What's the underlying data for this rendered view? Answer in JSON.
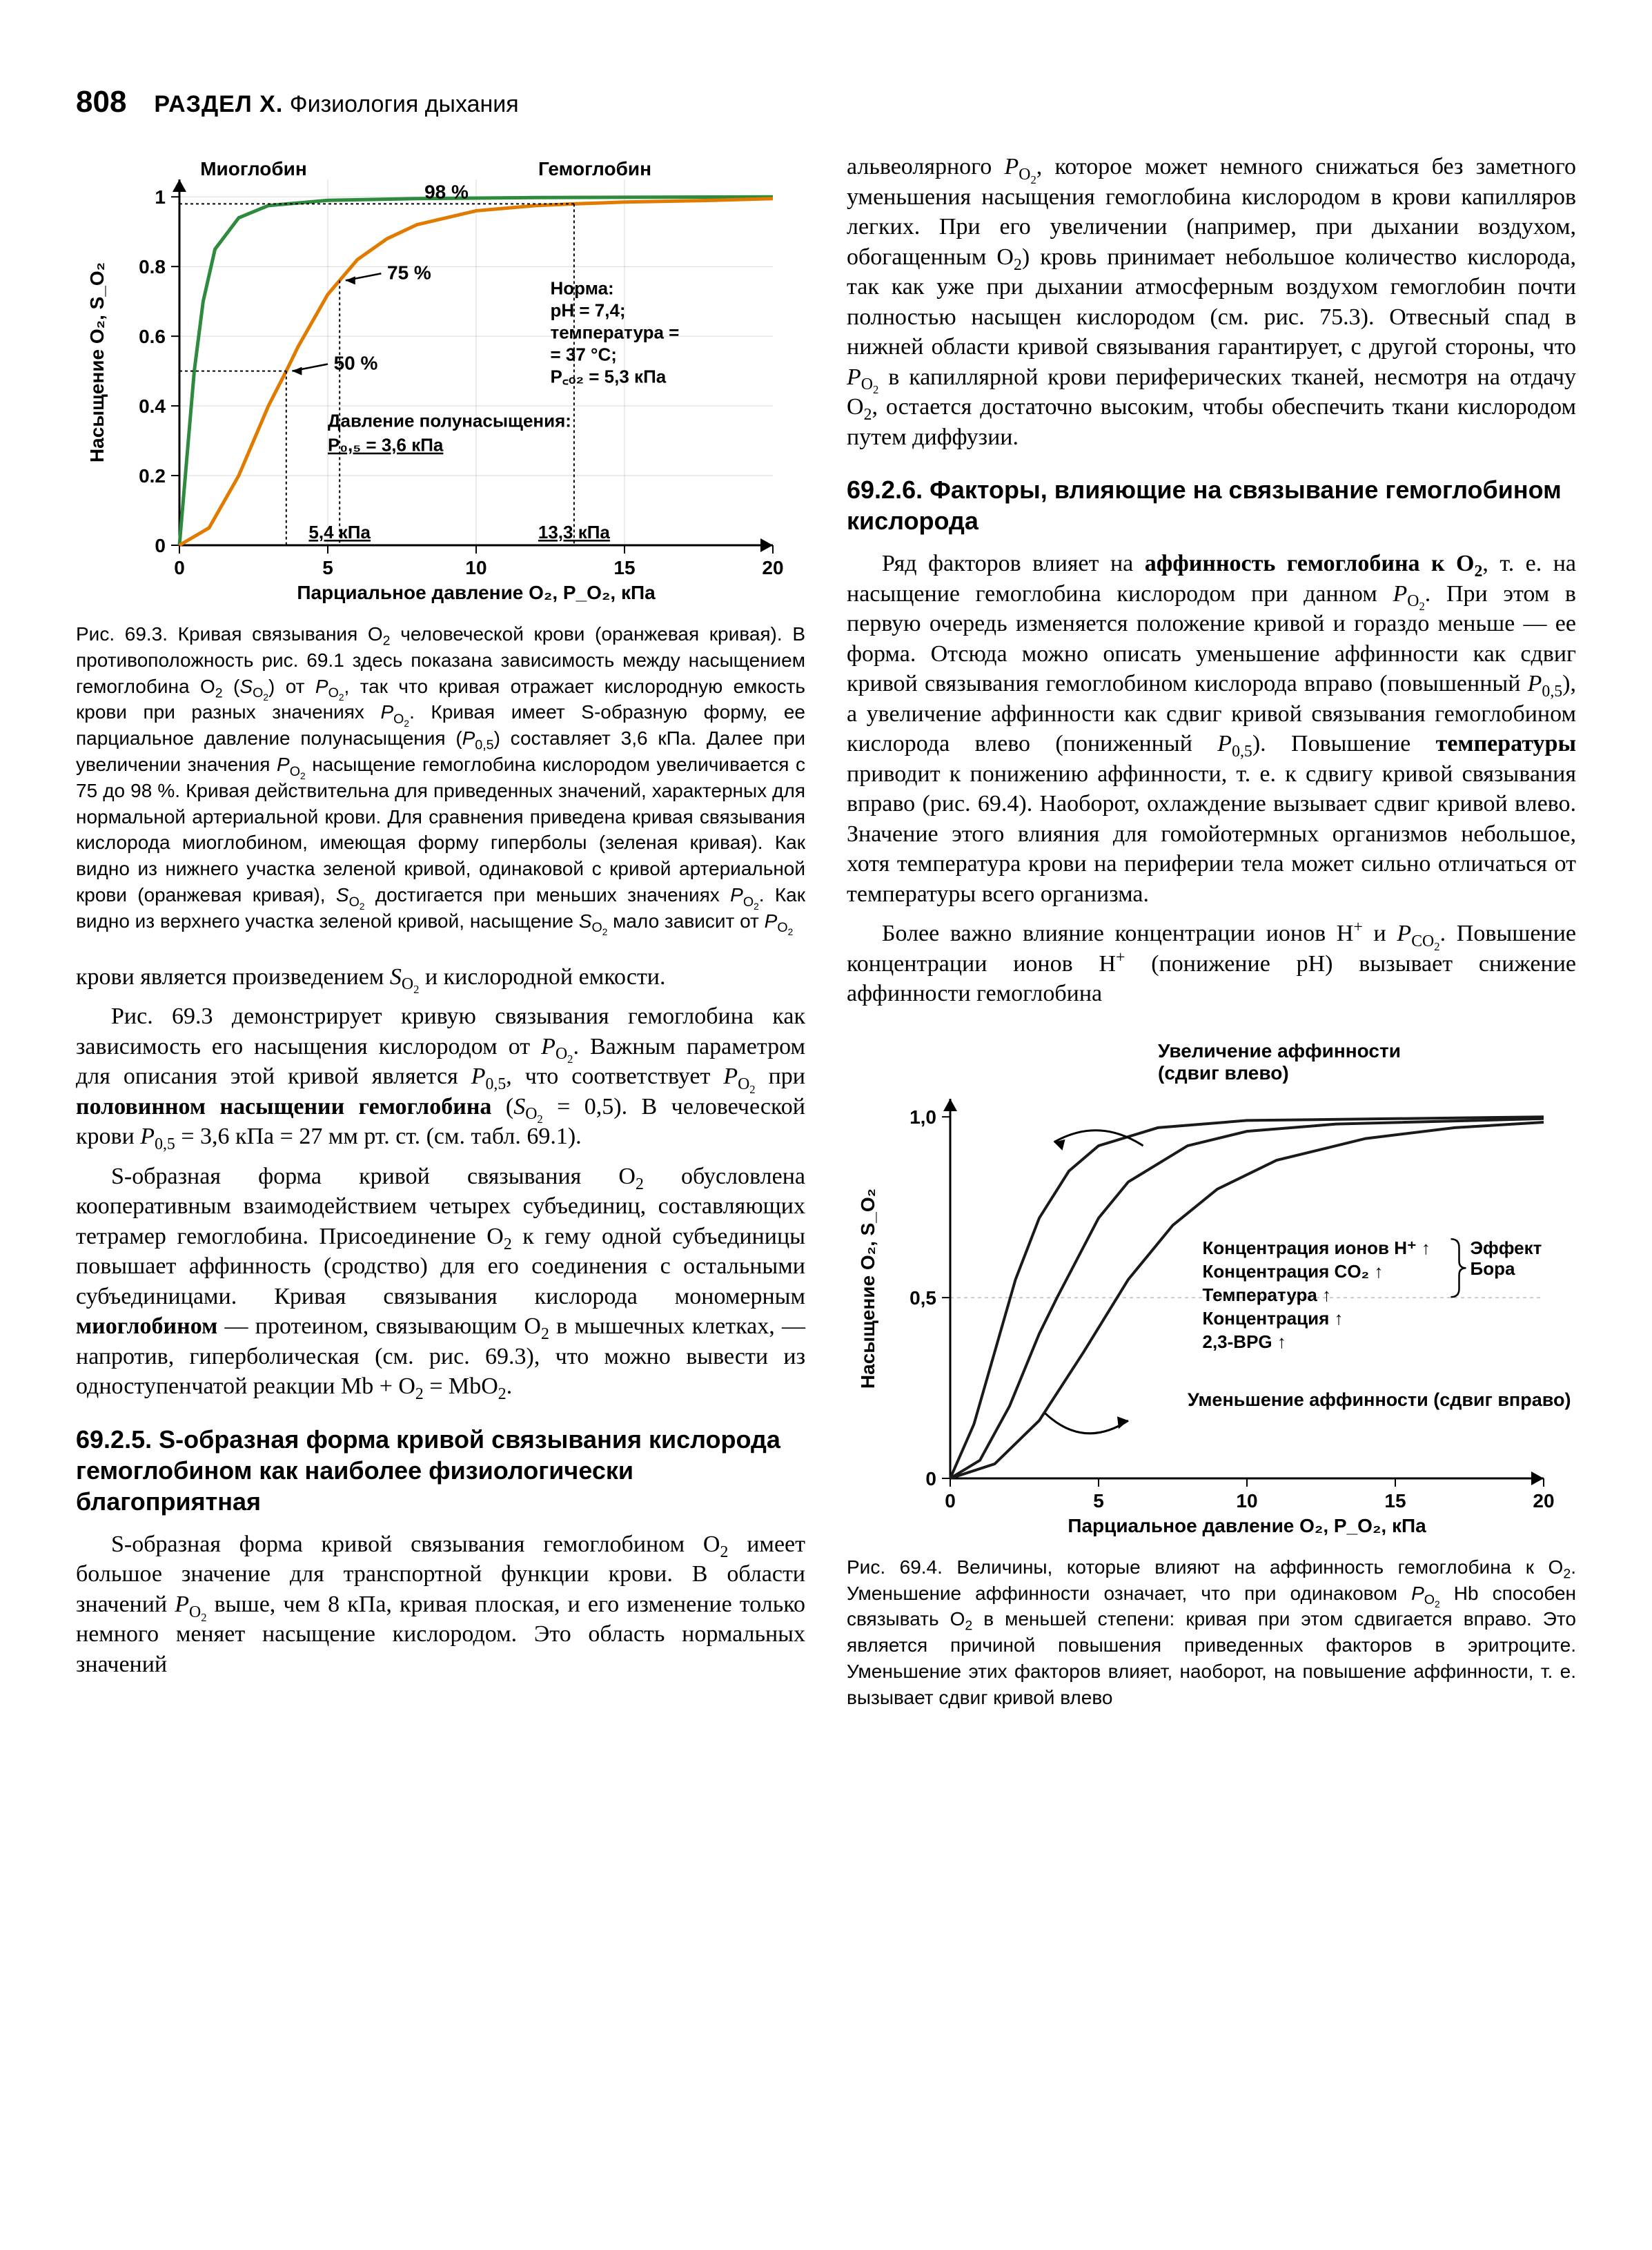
{
  "pageNumber": "808",
  "header": {
    "sectionRoman": "РАЗДЕЛ X.",
    "sectionTitle": "Физиология дыхания"
  },
  "fig693": {
    "type": "line",
    "title_top_left": "Миоглобин",
    "title_top_right": "Гемоглобин",
    "label_98": "98 %",
    "label_75": "75 %",
    "label_50": "50 %",
    "norm_block": {
      "title": "Норма:",
      "ph": "pH = 7,4;",
      "temp": "температура = = 37 °C;",
      "pco2": "P_CO2 = 5,3 кПа"
    },
    "half_sat_label": "Давление полунасыщения:",
    "half_sat_value": "P_0,5 = 3,6 кПа",
    "xtick_54": "5,4 кПа",
    "xtick_133": "13,3 кПа",
    "xlabel": "Парциальное давление O2, P_O2, кПа",
    "ylabel": "Насыщение O2, S_O2",
    "colors": {
      "hemoglobin": "#e07b00",
      "myoglobin": "#2e8b3e",
      "axis": "#000000",
      "grid": "#000000",
      "background": "#ffffff"
    },
    "style": {
      "axis_line_width": 3,
      "curve_line_width": 5,
      "arrow_line_width": 2.5,
      "font_size_label": 28,
      "font_size_tick": 28,
      "font_family": "Arial"
    },
    "axes": {
      "xlim": [
        0,
        20
      ],
      "ylim": [
        0,
        1.05
      ],
      "xticks": [
        0,
        5,
        10,
        15,
        20
      ],
      "yticks": [
        0,
        0.2,
        0.4,
        0.6,
        0.8,
        1.0
      ]
    },
    "hemoglobin_curve": [
      [
        0,
        0
      ],
      [
        1,
        0.05
      ],
      [
        2,
        0.2
      ],
      [
        3,
        0.4
      ],
      [
        3.6,
        0.5
      ],
      [
        4,
        0.57
      ],
      [
        5,
        0.72
      ],
      [
        5.4,
        0.76
      ],
      [
        6,
        0.82
      ],
      [
        7,
        0.88
      ],
      [
        8,
        0.92
      ],
      [
        10,
        0.96
      ],
      [
        12,
        0.975
      ],
      [
        13.3,
        0.98
      ],
      [
        15,
        0.985
      ],
      [
        18,
        0.99
      ],
      [
        20,
        0.995
      ]
    ],
    "myoglobin_curve": [
      [
        0,
        0
      ],
      [
        0.3,
        0.3
      ],
      [
        0.5,
        0.5
      ],
      [
        0.8,
        0.7
      ],
      [
        1.2,
        0.85
      ],
      [
        2,
        0.94
      ],
      [
        3,
        0.975
      ],
      [
        5,
        0.99
      ],
      [
        8,
        0.995
      ],
      [
        12,
        0.998
      ],
      [
        20,
        1.0
      ]
    ],
    "caption_html": "Рис. 69.3. Кривая связывания O<sub>2</sub> человеческой крови (оранжевая кривая). В противоположность рис. 69.1 здесь показана зависимость между насыщением гемоглобина O<sub>2</sub> (<i>S</i><sub>O<sub>2</sub></sub>) от <i>P</i><sub>O<sub>2</sub></sub>, так что кривая отражает кислородную емкость крови при разных значениях <i>P</i><sub>O<sub>2</sub></sub>. Кривая имеет S-образную форму, ее парциальное давление полунасыщения (<i>P</i><sub>0,5</sub>) составляет 3,6 кПа. Далее при увеличении значения <i>P</i><sub>O<sub>2</sub></sub> насыщение гемоглобина кислородом увеличивается с 75 до 98 %. Кривая действительна для приведенных значений, характерных для нормальной артериальной крови. Для сравнения приведена кривая связывания кислорода миоглобином, имеющая форму гиперболы (зеленая кривая). Как видно из нижнего участка зеленой кривой, одинаковой с кривой артериальной крови (оранжевая кривая), <i>S</i><sub>O<sub>2</sub></sub> достигается при меньших значениях <i>P</i><sub>O<sub>2</sub></sub>. Как видно из верхнего участка зеленой кривой, насыщение <i>S</i><sub>O<sub>2</sub></sub> мало зависит от <i>P</i><sub>O<sub>2</sub></sub>"
  },
  "left_body": {
    "p1": "крови является произведением <i>S</i><sub>O<sub>2</sub></sub> и кислородной емкости.",
    "p2": "Рис. 69.3 демонстрирует кривую связывания гемоглобина как зависимость его насыщения кислородом от <i>P</i><sub>O<sub>2</sub></sub>. Важным параметром для описания этой кривой является <i>P</i><sub>0,5</sub>, что соответствует <i>P</i><sub>O<sub>2</sub></sub> при <b>половинном насыщении гемоглобина</b> (<i>S</i><sub>O<sub>2</sub></sub> = 0,5). В человеческой крови <i>P</i><sub>0,5</sub> = 3,6 кПа = 27 мм рт. ст. (см. табл. 69.1).",
    "p3": "S-образная форма кривой связывания O<sub>2</sub> обусловлена кооперативным взаимодействием четырех субъединиц, составляющих тетрамер гемоглобина. Присоединение O<sub>2</sub> к гему одной субъединицы повышает аффинность (сродство) для его соединения с остальными субъединицами. Кривая связывания кислорода мономерным <b>миоглобином</b> — протеином, связывающим O<sub>2</sub> в мышечных клетках, — напротив, гиперболическая (см. рис. 69.3), что можно вывести из одноступенчатой реакции Mb + O<sub>2</sub> = MbO<sub>2</sub>."
  },
  "heading_6925": "69.2.5. S-образная форма кривой связывания кислорода гемоглобином как наиболее физиологически благоприятная",
  "left_body2": {
    "p1": "S-образная форма кривой связывания гемоглобином O<sub>2</sub> имеет большое значение для транспортной функции крови. В области значений <i>P</i><sub>O<sub>2</sub></sub> выше, чем 8 кПа, кривая плоская, и его изменение только немного меняет насыщение кислородом. Это область нормальных значений"
  },
  "right_body": {
    "p1": "альвеолярного <i>P</i><sub>O<sub>2</sub></sub>, которое может немного снижаться без заметного уменьшения насыщения гемоглобина кислородом в крови капилляров легких. При его увеличении (например, при дыхании воздухом, обогащенным O<sub>2</sub>) кровь принимает небольшое количество кислорода, так как уже при дыхании атмосферным воздухом гемоглобин почти полностью насыщен кислородом (см. рис. 75.3). Отвесный спад в нижней области кривой связывания гарантирует, с другой стороны, что <i>P</i><sub>O<sub>2</sub></sub> в капиллярной крови периферических тканей, несмотря на отдачу O<sub>2</sub>, остается достаточно высоким, чтобы обеспечить ткани кислородом путем диффузии."
  },
  "heading_6926": "69.2.6. Факторы, влияющие на связывание гемоглобином кислорода",
  "right_body2": {
    "p1": "Ряд факторов влияет на <b>аффинность гемоглобина к O<sub>2</sub></b>, т. е. на насыщение гемоглобина кислородом при данном <i>P</i><sub>O<sub>2</sub></sub>. При этом в первую очередь изменяется положение кривой и гораздо меньше — ее форма. Отсюда можно описать уменьшение аффинности как сдвиг кривой связывания гемоглобином кислорода вправо (повышенный <i>P</i><sub>0,5</sub>), а увеличение аффинности как сдвиг кривой связывания гемоглобином кислорода влево (пониженный <i>P</i><sub>0,5</sub>). Повышение <b>температуры</b> приводит к понижению аффинности, т. е. к сдвигу кривой связывания вправо (рис. 69.4). Наоборот, охлаждение вызывает сдвиг кривой влево. Значение этого влияния для гомойотермных организмов небольшое, хотя температура крови на периферии тела может сильно отличаться от температуры всего организма.",
    "p2": "Более важно влияние концентрации ионов H<sup>+</sup> и <i>P</i><sub>CO<sub>2</sub></sub>. Повышение концентрации ионов H<sup>+</sup> (понижение pH) вызывает снижение аффинности гемоглобина"
  },
  "fig694": {
    "type": "line",
    "top_label": "Увеличение аффинности (сдвиг влево)",
    "bottom_label": "Уменьшение аффинности (сдвиг вправо)",
    "legend": {
      "l1": "Концентрация ионов H+ ↑",
      "l2": "Концентрация CO2 ↑",
      "bracket": "Эффект Бора",
      "l3": "Температура ↑",
      "l4": "Концентрация ↑",
      "l5": "2,3-BPG ↑"
    },
    "xlabel": "Парциальное давление O2, P_O2, кПа",
    "ylabel": "Насыщение O2, S_O2",
    "colors": {
      "curves": "#1a1a1a",
      "axis": "#000000",
      "background": "#ffffff"
    },
    "style": {
      "axis_line_width": 3,
      "curve_line_width": 4,
      "arrow_line_width": 3,
      "font_size_label": 28,
      "font_size_tick": 28,
      "font_family": "Arial"
    },
    "axes": {
      "xlim": [
        0,
        20
      ],
      "ylim": [
        0,
        1.05
      ],
      "xticks": [
        0,
        5,
        10,
        15,
        20
      ],
      "yticks": [
        0,
        0.5,
        1.0
      ]
    },
    "left_curve": [
      [
        0,
        0
      ],
      [
        0.8,
        0.15
      ],
      [
        1.5,
        0.35
      ],
      [
        2.2,
        0.55
      ],
      [
        3,
        0.72
      ],
      [
        4,
        0.85
      ],
      [
        5,
        0.92
      ],
      [
        7,
        0.97
      ],
      [
        10,
        0.99
      ],
      [
        15,
        0.995
      ],
      [
        20,
        1.0
      ]
    ],
    "mid_curve": [
      [
        0,
        0
      ],
      [
        1,
        0.05
      ],
      [
        2,
        0.2
      ],
      [
        3,
        0.4
      ],
      [
        3.6,
        0.5
      ],
      [
        5,
        0.72
      ],
      [
        6,
        0.82
      ],
      [
        8,
        0.92
      ],
      [
        10,
        0.96
      ],
      [
        13,
        0.98
      ],
      [
        20,
        0.995
      ]
    ],
    "right_curve": [
      [
        0,
        0
      ],
      [
        1.5,
        0.04
      ],
      [
        3,
        0.16
      ],
      [
        4.5,
        0.35
      ],
      [
        6,
        0.55
      ],
      [
        7.5,
        0.7
      ],
      [
        9,
        0.8
      ],
      [
        11,
        0.88
      ],
      [
        14,
        0.94
      ],
      [
        17,
        0.97
      ],
      [
        20,
        0.985
      ]
    ],
    "caption_html": "Рис. 69.4. Величины, которые влияют на аффинность гемоглобина к O<sub>2</sub>. Уменьшение аффинности означает, что при одинаковом <i>P</i><sub>O<sub>2</sub></sub> Hb способен связывать O<sub>2</sub> в меньшей степени: кривая при этом сдвигается вправо. Это является причиной повышения приведенных факторов в эритроците. Уменьшение этих факторов влияет, наоборот, на повышение аффинности, т. е. вызывает сдвиг кривой влево"
  }
}
